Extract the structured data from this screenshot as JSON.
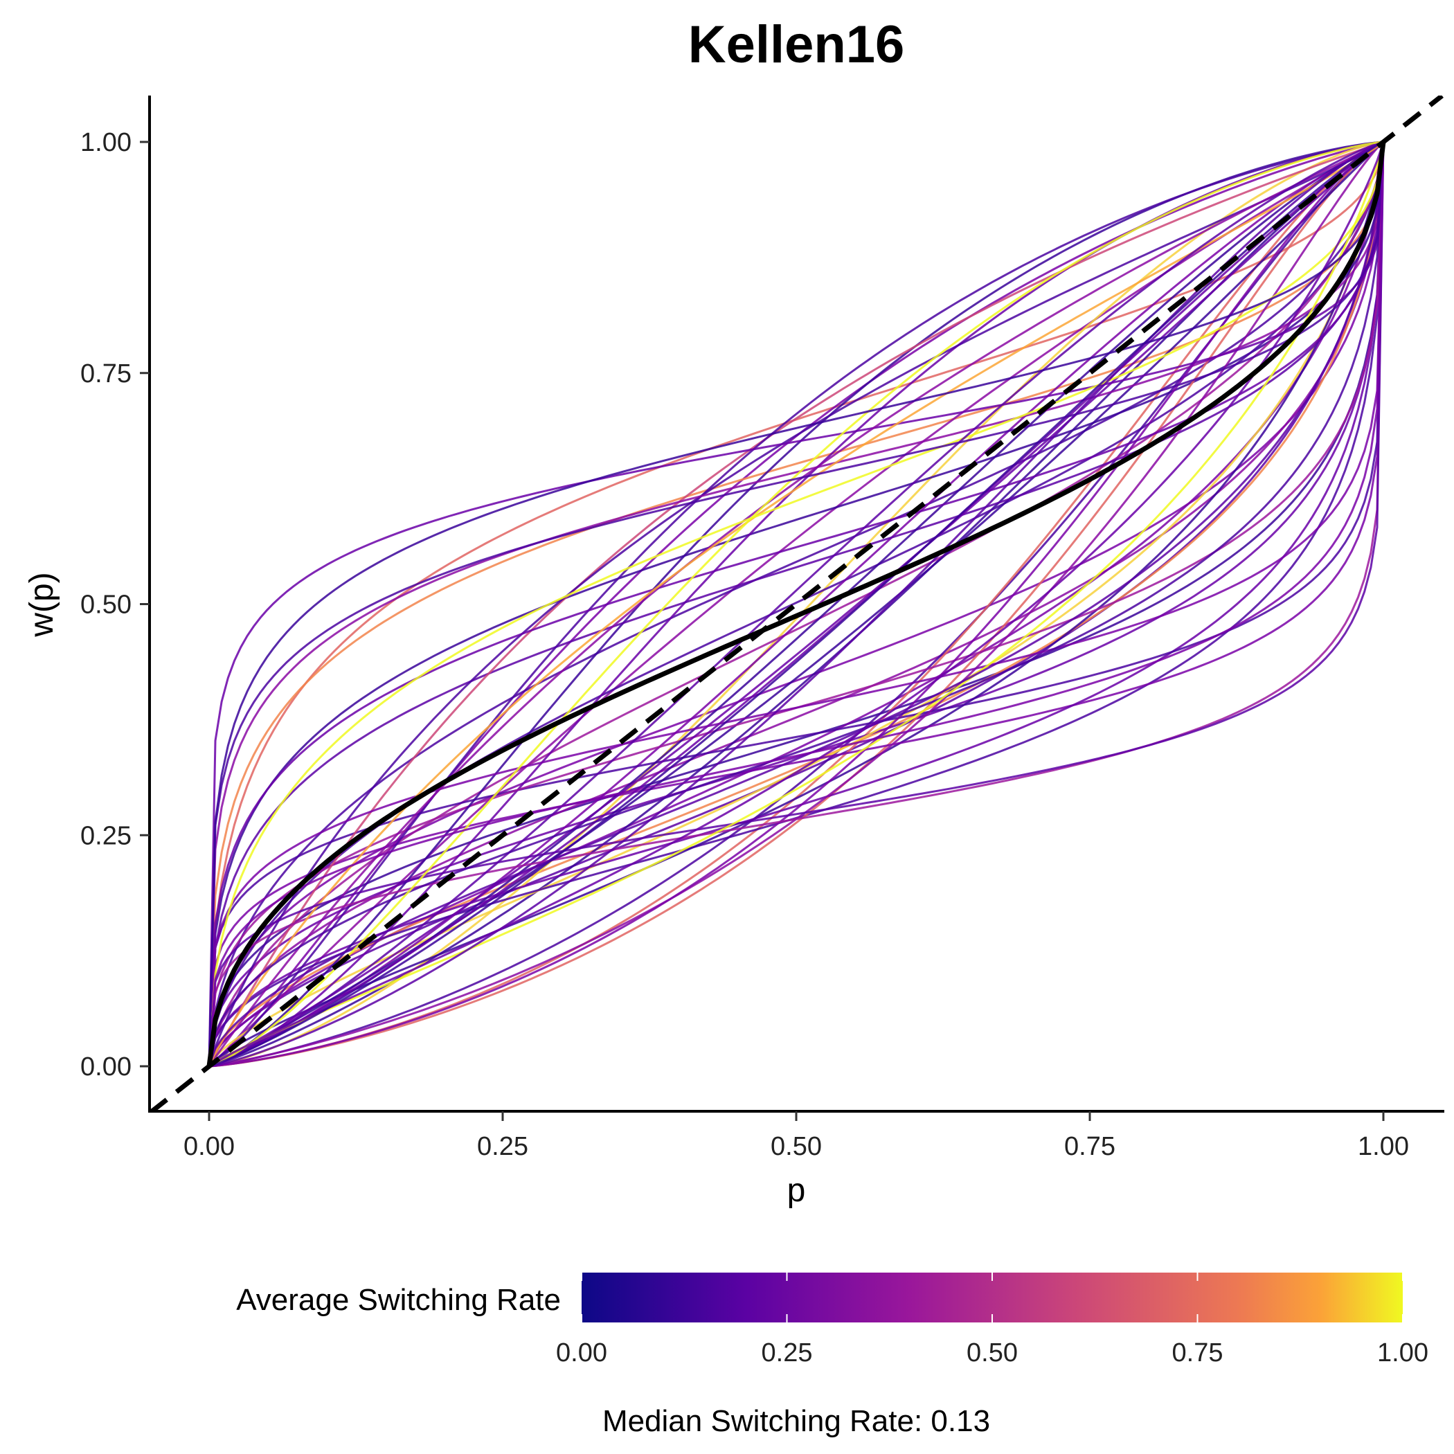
{
  "chart_data": {
    "type": "line",
    "title": "Kellen16",
    "xlabel": "p",
    "ylabel": "w(p)",
    "xlim": [
      -0.05,
      1.05
    ],
    "ylim": [
      -0.05,
      1.05
    ],
    "x_ticks": [
      "0.00",
      "0.25",
      "0.50",
      "0.75",
      "1.00"
    ],
    "y_ticks": [
      "0.00",
      "0.25",
      "0.50",
      "0.75",
      "1.00"
    ],
    "grid": false,
    "reference_line": {
      "name": "identity",
      "style": "dashed",
      "color": "#000000",
      "slope": 1,
      "intercept": 0
    },
    "median_curve": {
      "color": "#000000",
      "gamma": 0.55,
      "delta": 0.95
    },
    "individual_curves": {
      "model": "linear-in-log-odds probability weighting w(p) = d*p^g / (d*p^g + (1-p)^g)",
      "count": 60,
      "gamma_range": [
        0.25,
        1.35
      ],
      "delta_range": [
        0.35,
        2.4
      ],
      "colored_by": "Average Switching Rate",
      "colors_note": "mostly purple (low switching rate), a few orange/yellow (high)"
    },
    "legend": {
      "title": "Average Switching Rate",
      "type": "colorbar",
      "placement": "bottom",
      "ticks": [
        "0.00",
        "0.25",
        "0.50",
        "0.75",
        "1.00"
      ],
      "colors": [
        "#0d0887",
        "#6a00a8",
        "#b12a90",
        "#e16462",
        "#fca636",
        "#f0f921"
      ]
    },
    "caption": "Median Switching Rate: 0.13"
  }
}
